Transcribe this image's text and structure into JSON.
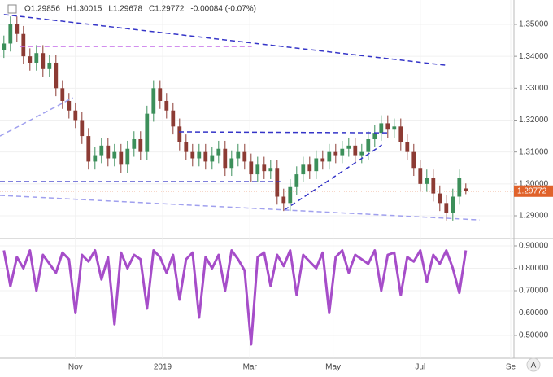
{
  "chart_data": {
    "type": "candlestick",
    "legend_text": [
      "O1.29856",
      "H1.30015",
      "L1.29678",
      "C1.29772",
      "-0.00084 (-0.07%)"
    ],
    "up_color": "#3c8f5a",
    "down_color": "#8c3b34",
    "xlim": [
      -0.6,
      78.4
    ],
    "xticks": [
      {
        "value": 11,
        "label": "Nov"
      },
      {
        "value": 24.4,
        "label": "2019"
      },
      {
        "value": 37.8,
        "label": "Mar"
      },
      {
        "value": 50.6,
        "label": "May"
      },
      {
        "value": 64,
        "label": "Jul"
      },
      {
        "value": 77.9,
        "label": "Se"
      }
    ],
    "ylim": [
      1.28311,
      1.35765
    ],
    "yticks": [
      {
        "value": 1.29,
        "label": "1.29000"
      },
      {
        "value": 1.3,
        "label": "1.30000"
      },
      {
        "value": 1.31,
        "label": "1.31000"
      },
      {
        "value": 1.32,
        "label": "1.32000"
      },
      {
        "value": 1.33,
        "label": "1.33000"
      },
      {
        "value": 1.34,
        "label": "1.34000"
      },
      {
        "value": 1.35,
        "label": "1.35000"
      }
    ],
    "open": [
      1.342,
      1.344,
      1.35,
      1.347,
      1.34,
      1.338,
      1.341,
      1.336,
      1.338,
      1.33,
      1.326,
      1.323,
      1.32,
      1.315,
      1.307,
      1.309,
      1.312,
      1.308,
      1.31,
      1.306,
      1.311,
      1.314,
      1.31,
      1.322,
      1.33,
      1.326,
      1.323,
      1.318,
      1.313,
      1.31,
      1.308,
      1.31,
      1.307,
      1.309,
      1.311,
      1.305,
      1.308,
      1.31,
      1.307,
      1.303,
      1.306,
      1.304,
      1.305,
      1.296,
      1.294,
      1.299,
      1.303,
      1.306,
      1.304,
      1.308,
      1.307,
      1.31,
      1.309,
      1.311,
      1.312,
      1.309,
      1.31,
      1.314,
      1.316,
      1.319,
      1.317,
      1.318,
      1.313,
      1.31,
      1.305,
      1.3,
      1.302,
      1.297,
      1.294,
      1.291,
      1.296,
      1.29856
    ],
    "high": [
      1.3465,
      1.3525,
      1.3525,
      1.3495,
      1.3425,
      1.3435,
      1.3435,
      1.3405,
      1.3405,
      1.3325,
      1.3285,
      1.3255,
      1.3225,
      1.3175,
      1.3115,
      1.3145,
      1.3145,
      1.3125,
      1.3125,
      1.3135,
      1.3165,
      1.3165,
      1.3245,
      1.3325,
      1.3325,
      1.3285,
      1.3255,
      1.3205,
      1.3155,
      1.3125,
      1.3125,
      1.3125,
      1.3115,
      1.3135,
      1.3135,
      1.3105,
      1.3125,
      1.3125,
      1.3095,
      1.3085,
      1.3085,
      1.3075,
      1.3075,
      1.2985,
      1.3015,
      1.3055,
      1.3085,
      1.3085,
      1.3105,
      1.3105,
      1.3125,
      1.3125,
      1.3135,
      1.3145,
      1.3145,
      1.3125,
      1.3165,
      1.3185,
      1.3215,
      1.3215,
      1.3205,
      1.3205,
      1.3155,
      1.3125,
      1.3075,
      1.3045,
      1.3045,
      1.2995,
      1.2965,
      1.2985,
      1.3045,
      1.30015
    ],
    "low": [
      1.3395,
      1.3415,
      1.3445,
      1.3375,
      1.3355,
      1.3355,
      1.3335,
      1.3335,
      1.3275,
      1.3235,
      1.3205,
      1.3175,
      1.3125,
      1.3045,
      1.3045,
      1.3065,
      1.3055,
      1.3055,
      1.3035,
      1.3035,
      1.3085,
      1.3075,
      1.3075,
      1.3195,
      1.3235,
      1.3205,
      1.3155,
      1.3105,
      1.3075,
      1.3055,
      1.3055,
      1.3045,
      1.3045,
      1.3065,
      1.3025,
      1.3025,
      1.3055,
      1.3045,
      1.3005,
      1.3005,
      1.3015,
      1.3015,
      1.2935,
      1.2915,
      1.2915,
      1.2965,
      1.3005,
      1.3015,
      1.3015,
      1.3045,
      1.3045,
      1.3065,
      1.3065,
      1.3085,
      1.3065,
      1.3065,
      1.3075,
      1.3115,
      1.3135,
      1.3145,
      1.3145,
      1.3105,
      1.3075,
      1.3025,
      1.2975,
      1.2975,
      1.2945,
      1.2915,
      1.2885,
      1.2885,
      1.2935,
      1.29678
    ],
    "close": [
      1.344,
      1.35,
      1.347,
      1.34,
      1.338,
      1.341,
      1.336,
      1.338,
      1.33,
      1.326,
      1.323,
      1.32,
      1.315,
      1.307,
      1.309,
      1.312,
      1.308,
      1.31,
      1.306,
      1.311,
      1.314,
      1.31,
      1.322,
      1.33,
      1.326,
      1.323,
      1.318,
      1.313,
      1.31,
      1.308,
      1.31,
      1.307,
      1.309,
      1.311,
      1.305,
      1.308,
      1.31,
      1.307,
      1.303,
      1.306,
      1.304,
      1.305,
      1.296,
      1.294,
      1.299,
      1.303,
      1.306,
      1.304,
      1.308,
      1.307,
      1.31,
      1.309,
      1.311,
      1.312,
      1.309,
      1.31,
      1.314,
      1.316,
      1.319,
      1.317,
      1.318,
      1.313,
      1.31,
      1.305,
      1.3,
      1.302,
      1.297,
      1.294,
      1.291,
      1.296,
      1.302,
      1.29772
    ],
    "price_line": {
      "value": 1.29772,
      "label": "1.29772",
      "color": "#e0622a"
    },
    "trendlines": [
      {
        "from": [
          0,
          1.3531
        ],
        "to": [
          67.9,
          1.3372
        ],
        "color": "#3535c8",
        "dash": true
      },
      {
        "from": [
          2.5,
          1.3431
        ],
        "to": [
          38.1,
          1.3431
        ],
        "color": "#c46ae8",
        "dash": true
      },
      {
        "from": [
          26.9,
          1.3163
        ],
        "to": [
          59.4,
          1.316
        ],
        "color": "#3535c8",
        "dash": true
      },
      {
        "from": [
          -0.6,
          1.3007
        ],
        "to": [
          42.5,
          1.3007
        ],
        "color": "#3535c8",
        "dash": true
      },
      {
        "from": [
          43.1,
          1.2918
        ],
        "to": [
          58.1,
          1.3122
        ],
        "color": "#3535c8",
        "dash": true
      },
      {
        "from": [
          -0.6,
          1.2964
        ],
        "to": [
          73.1,
          1.2887
        ],
        "color": "#a0a0ee",
        "dash": true
      },
      {
        "from": [
          -0.6,
          1.315
        ],
        "to": [
          10.6,
          1.327
        ],
        "color": "#a0a0ee",
        "dash": true
      }
    ],
    "indicator": {
      "color": "#a64dc9",
      "ylim": [
        0.398,
        0.9255
      ],
      "yticks": [
        {
          "value": 0.5,
          "label": "0.50000"
        },
        {
          "value": 0.6,
          "label": "0.60000"
        },
        {
          "value": 0.7,
          "label": "0.70000"
        },
        {
          "value": 0.8,
          "label": "0.80000"
        },
        {
          "value": 0.9,
          "label": "0.90000"
        }
      ],
      "values": [
        0.88,
        0.72,
        0.85,
        0.8,
        0.88,
        0.7,
        0.86,
        0.82,
        0.78,
        0.87,
        0.84,
        0.6,
        0.86,
        0.83,
        0.88,
        0.75,
        0.85,
        0.55,
        0.87,
        0.8,
        0.86,
        0.84,
        0.62,
        0.88,
        0.85,
        0.78,
        0.86,
        0.66,
        0.84,
        0.87,
        0.58,
        0.85,
        0.8,
        0.86,
        0.7,
        0.88,
        0.84,
        0.79,
        0.46,
        0.85,
        0.87,
        0.72,
        0.86,
        0.81,
        0.88,
        0.68,
        0.86,
        0.83,
        0.8,
        0.87,
        0.6,
        0.85,
        0.88,
        0.78,
        0.86,
        0.84,
        0.82,
        0.88,
        0.7,
        0.86,
        0.87,
        0.68,
        0.85,
        0.83,
        0.88,
        0.74,
        0.86,
        0.82,
        0.88,
        0.8,
        0.69,
        0.88
      ]
    }
  }
}
